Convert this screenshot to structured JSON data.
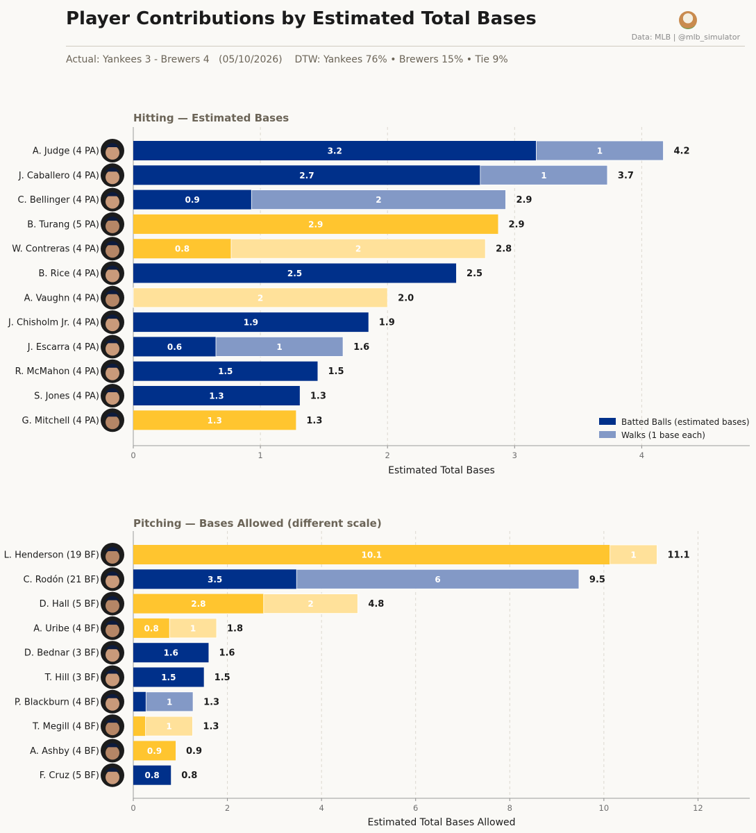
{
  "header": {
    "title": "Player Contributions by Estimated Total Bases",
    "credit": "Data: MLB  |  @mlb_simulator",
    "subtitle": "Actual: Yankees 3 - Brewers 4   (05/10/2026)    DTW: Yankees 76% • Brewers 15% • Tie 9%"
  },
  "colors": {
    "yankees_batted": "#00308a",
    "yankees_walks": "#8399c6",
    "brewers_batted": "#ffc52f",
    "brewers_walks": "#ffe19a"
  },
  "chart_data": [
    {
      "type": "bar",
      "orientation": "horizontal",
      "stacked": true,
      "title": "Hitting  —  Estimated Bases",
      "xlabel": "Estimated Total Bases",
      "xlim": [
        0,
        4.85
      ],
      "xticks": [
        0,
        1,
        2,
        3,
        4
      ],
      "grid": true,
      "legend": {
        "placement": "bottom-right",
        "entries": [
          "Batted Balls (estimated bases)",
          "Walks (1 base each)"
        ]
      },
      "players": [
        {
          "label": "A. Judge  (4 PA)",
          "team": "Yankees",
          "batted": 3.17,
          "walks": 1,
          "batted_text": "3.2",
          "walks_text": "1",
          "total": "4.2"
        },
        {
          "label": "J. Caballero  (4 PA)",
          "team": "Yankees",
          "batted": 2.73,
          "walks": 1,
          "batted_text": "2.7",
          "walks_text": "1",
          "total": "3.7"
        },
        {
          "label": "C. Bellinger  (4 PA)",
          "team": "Yankees",
          "batted": 0.93,
          "walks": 2,
          "batted_text": "0.9",
          "walks_text": "2",
          "total": "2.9"
        },
        {
          "label": "B. Turang  (5 PA)",
          "team": "Brewers",
          "batted": 2.87,
          "walks": 0,
          "batted_text": "2.9",
          "walks_text": "",
          "total": "2.9"
        },
        {
          "label": "W. Contreras  (4 PA)",
          "team": "Brewers",
          "batted": 0.77,
          "walks": 2,
          "batted_text": "0.8",
          "walks_text": "2",
          "total": "2.8"
        },
        {
          "label": "B. Rice  (4 PA)",
          "team": "Yankees",
          "batted": 2.54,
          "walks": 0,
          "batted_text": "2.5",
          "walks_text": "",
          "total": "2.5"
        },
        {
          "label": "A. Vaughn  (4 PA)",
          "team": "Brewers",
          "batted": 0,
          "walks": 2,
          "batted_text": "",
          "walks_text": "2",
          "total": "2.0"
        },
        {
          "label": "J. Chisholm Jr.  (4 PA)",
          "team": "Yankees",
          "batted": 1.85,
          "walks": 0,
          "batted_text": "1.9",
          "walks_text": "",
          "total": "1.9"
        },
        {
          "label": "J. Escarra  (4 PA)",
          "team": "Yankees",
          "batted": 0.65,
          "walks": 1,
          "batted_text": "0.6",
          "walks_text": "1",
          "total": "1.6"
        },
        {
          "label": "R. McMahon  (4 PA)",
          "team": "Yankees",
          "batted": 1.45,
          "walks": 0,
          "batted_text": "1.5",
          "walks_text": "",
          "total": "1.5"
        },
        {
          "label": "S. Jones  (4 PA)",
          "team": "Yankees",
          "batted": 1.31,
          "walks": 0,
          "batted_text": "1.3",
          "walks_text": "",
          "total": "1.3"
        },
        {
          "label": "G. Mitchell  (4 PA)",
          "team": "Brewers",
          "batted": 1.28,
          "walks": 0,
          "batted_text": "1.3",
          "walks_text": "",
          "total": "1.3"
        }
      ]
    },
    {
      "type": "bar",
      "orientation": "horizontal",
      "stacked": true,
      "title": "Pitching  —  Bases Allowed  (different scale)",
      "xlabel": "Estimated Total Bases Allowed",
      "xlim": [
        0,
        13.1
      ],
      "xticks": [
        0,
        2,
        4,
        6,
        8,
        10,
        12
      ],
      "grid": true,
      "players": [
        {
          "label": "L. Henderson  (19 BF)",
          "team": "Brewers",
          "batted": 10.13,
          "walks": 1,
          "batted_text": "10.1",
          "walks_text": "1",
          "total": "11.1"
        },
        {
          "label": "C. Rodón  (21 BF)",
          "team": "Yankees",
          "batted": 3.47,
          "walks": 6,
          "batted_text": "3.5",
          "walks_text": "6",
          "total": "9.5"
        },
        {
          "label": "D. Hall  (5 BF)",
          "team": "Brewers",
          "batted": 2.77,
          "walks": 2,
          "batted_text": "2.8",
          "walks_text": "2",
          "total": "4.8"
        },
        {
          "label": "A. Uribe  (4 BF)",
          "team": "Brewers",
          "batted": 0.77,
          "walks": 1,
          "batted_text": "0.8",
          "walks_text": "1",
          "total": "1.8"
        },
        {
          "label": "D. Bednar  (3 BF)",
          "team": "Yankees",
          "batted": 1.6,
          "walks": 0,
          "batted_text": "1.6",
          "walks_text": "",
          "total": "1.6"
        },
        {
          "label": "T. Hill  (3 BF)",
          "team": "Yankees",
          "batted": 1.5,
          "walks": 0,
          "batted_text": "1.5",
          "walks_text": "",
          "total": "1.5"
        },
        {
          "label": "P. Blackburn  (4 BF)",
          "team": "Yankees",
          "batted": 0.27,
          "walks": 1,
          "batted_text": "",
          "walks_text": "1",
          "total": "1.3"
        },
        {
          "label": "T. Megill  (4 BF)",
          "team": "Brewers",
          "batted": 0.26,
          "walks": 1,
          "batted_text": "",
          "walks_text": "1",
          "total": "1.3"
        },
        {
          "label": "A. Ashby  (4 BF)",
          "team": "Brewers",
          "batted": 0.9,
          "walks": 0,
          "batted_text": "0.9",
          "walks_text": "",
          "total": "0.9"
        },
        {
          "label": "F. Cruz  (5 BF)",
          "team": "Yankees",
          "batted": 0.8,
          "walks": 0,
          "batted_text": "0.8",
          "walks_text": "",
          "total": "0.8"
        }
      ]
    }
  ]
}
